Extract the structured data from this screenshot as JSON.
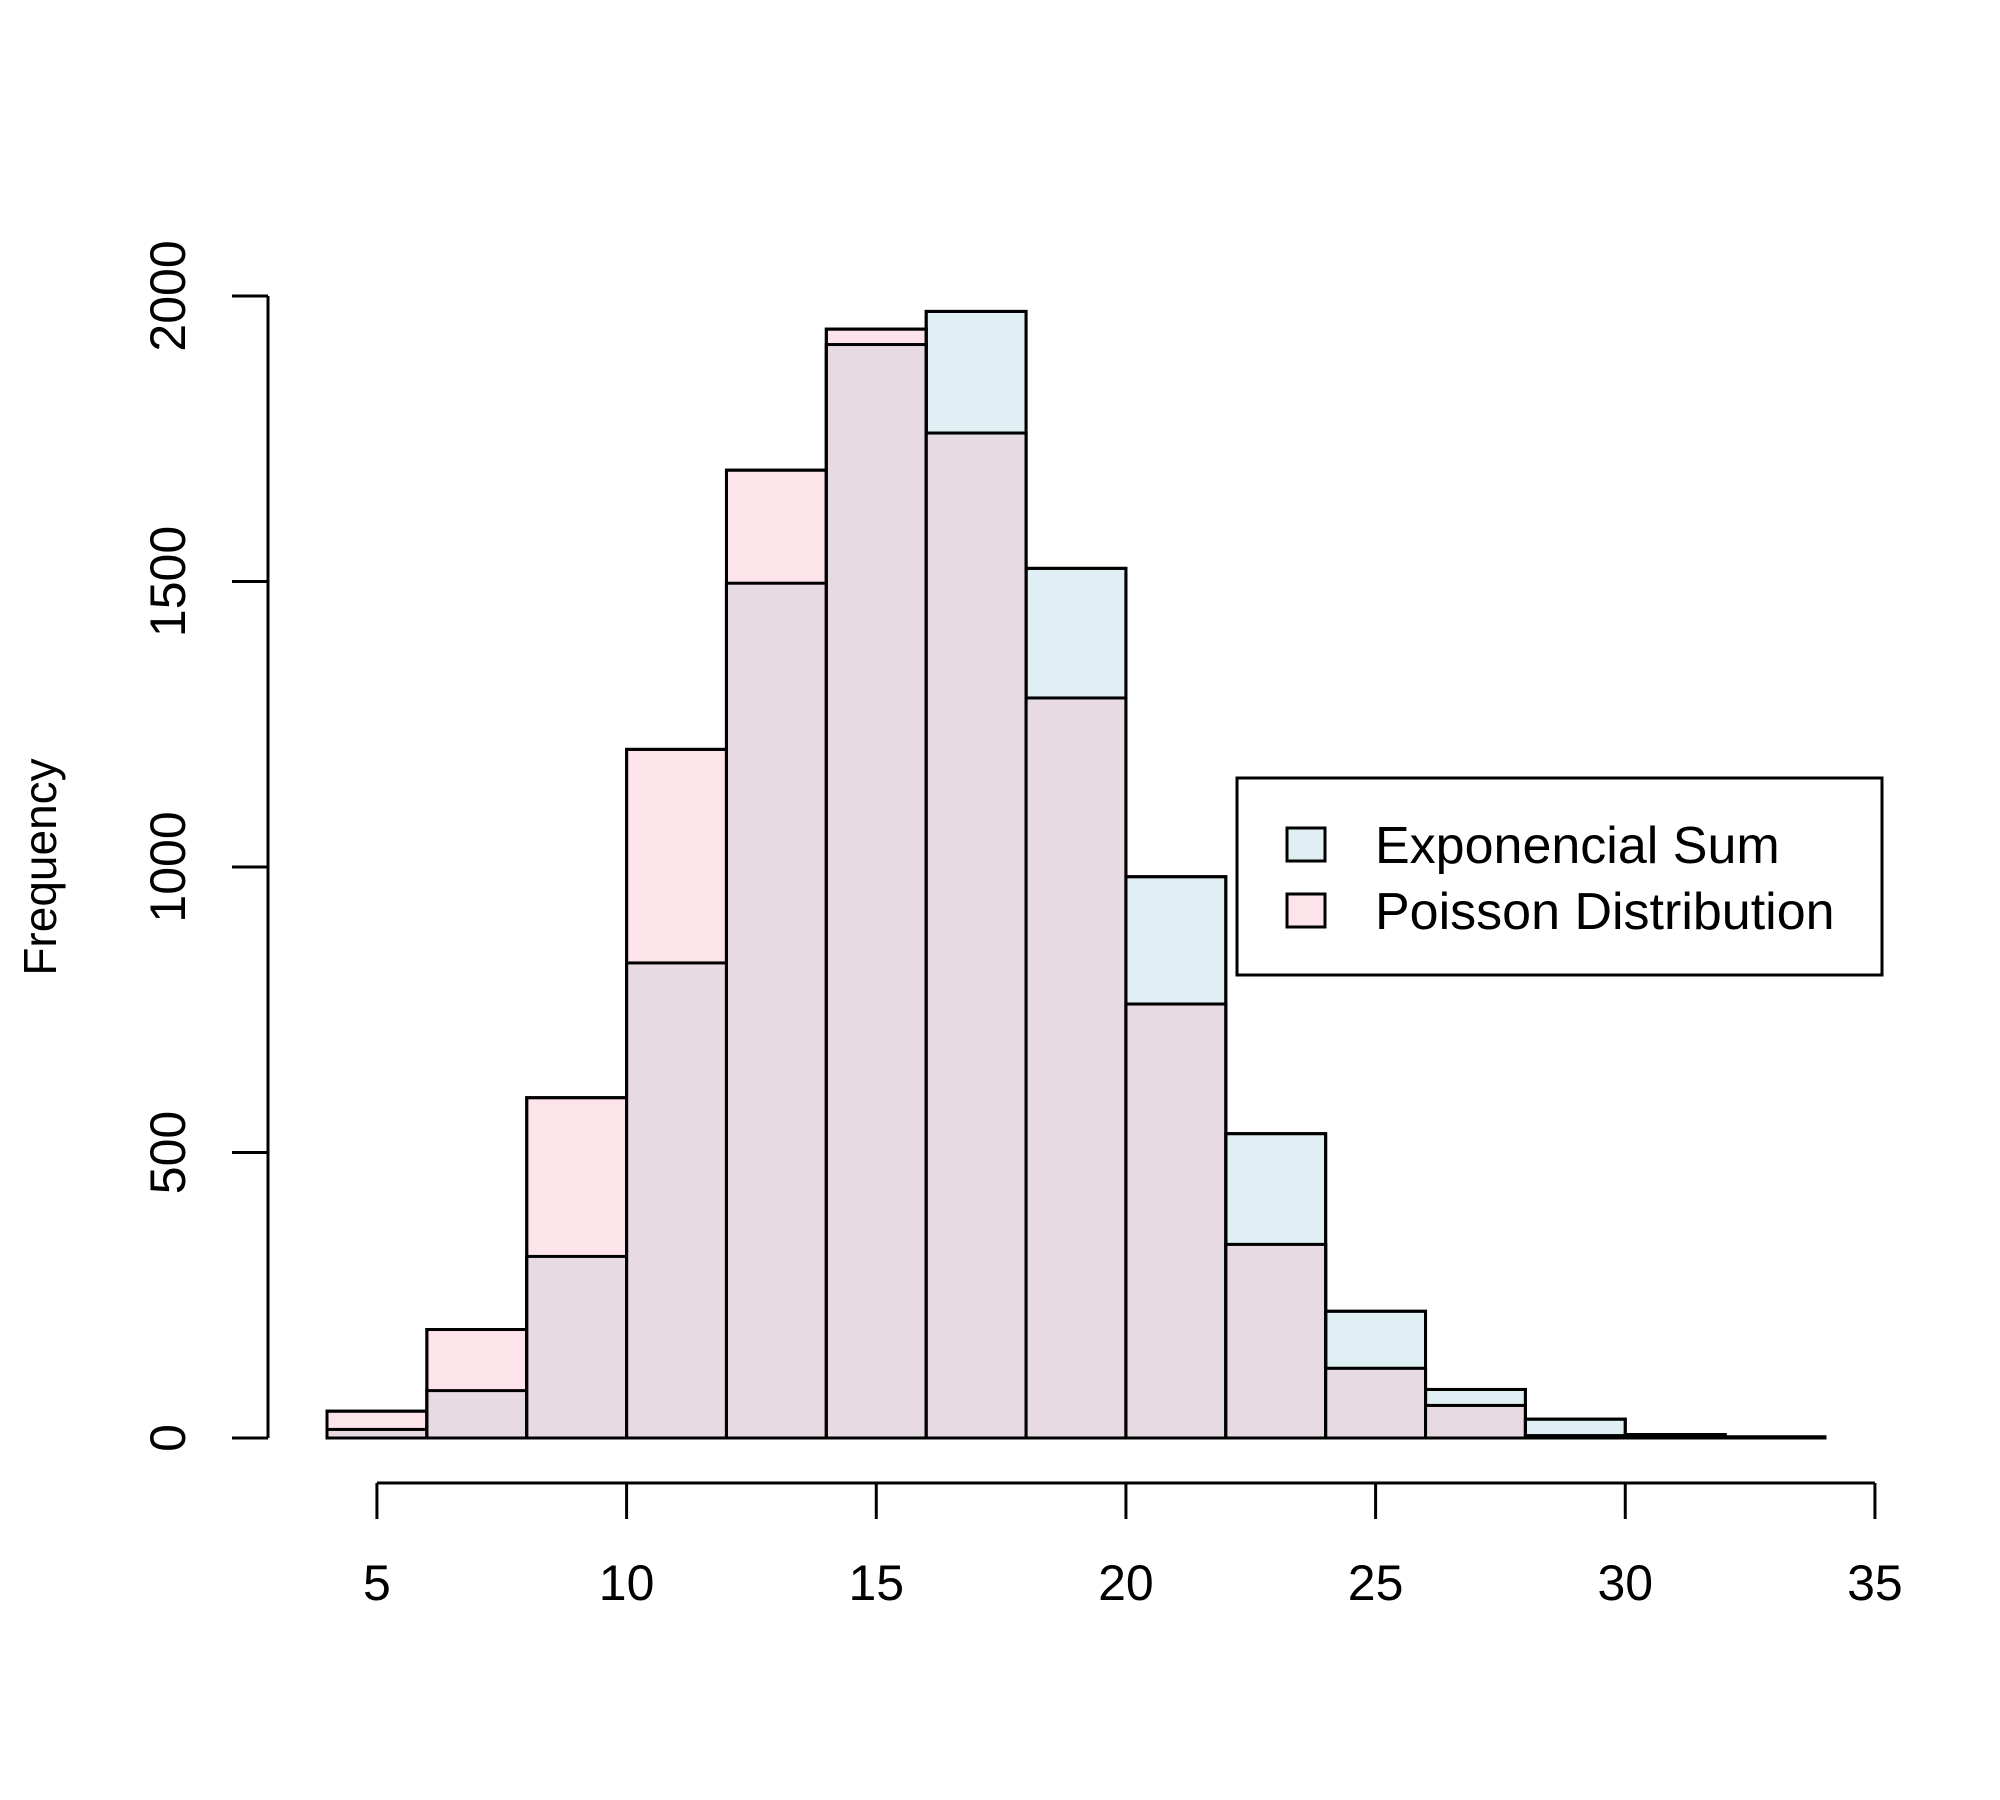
{
  "chart_data": {
    "type": "bar",
    "histogram": true,
    "title": "",
    "xlabel": "",
    "ylabel": "Frequency",
    "xlim": [
      4,
      34
    ],
    "ylim": [
      0,
      2000
    ],
    "x_ticks": [
      5,
      10,
      15,
      20,
      25,
      30,
      35
    ],
    "y_ticks": [
      0,
      500,
      1000,
      1500,
      2000
    ],
    "bin_edges": [
      4,
      6,
      8,
      10,
      12,
      14,
      16,
      18,
      20,
      22,
      24,
      26,
      28,
      30,
      32,
      34
    ],
    "series": [
      {
        "name": "Exponencial Sum",
        "color": "#e0eff3",
        "values": [
          15,
          83,
          318,
          832,
          1497,
          1915,
          1973,
          1523,
          983,
          533,
          222,
          85,
          33,
          6,
          2
        ]
      },
      {
        "name": "Poisson Distribution",
        "color": "#fde4ea",
        "values": [
          47,
          190,
          596,
          1206,
          1695,
          1942,
          1760,
          1296,
          760,
          339,
          122,
          57,
          4,
          5,
          1
        ]
      }
    ],
    "overlap_color": "#e7dae3",
    "legend": {
      "placement": "right",
      "entries": [
        "Exponencial Sum",
        "Poisson Distribution"
      ]
    },
    "grid": false
  }
}
